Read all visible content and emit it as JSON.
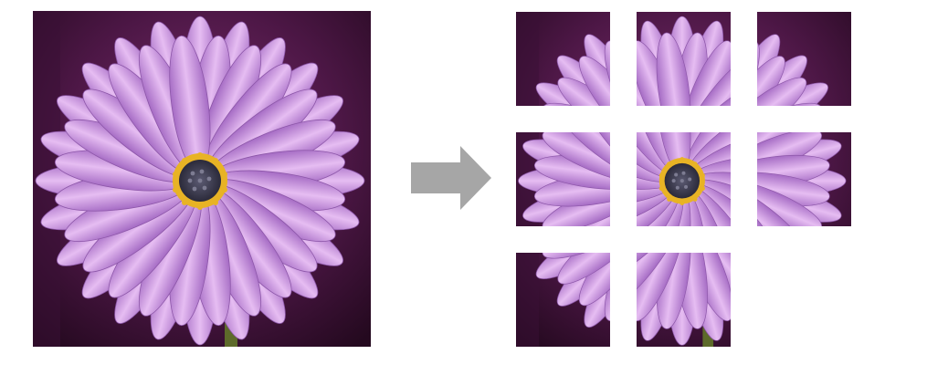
{
  "figure": {
    "source_image": "daisy-icon",
    "arrow": "right-arrow-icon",
    "grid": {
      "rows": 3,
      "cols": 3
    },
    "tiles": [
      {
        "row": 0,
        "col": 0,
        "present": true
      },
      {
        "row": 0,
        "col": 1,
        "present": true
      },
      {
        "row": 0,
        "col": 2,
        "present": true
      },
      {
        "row": 1,
        "col": 0,
        "present": true
      },
      {
        "row": 1,
        "col": 1,
        "present": true
      },
      {
        "row": 1,
        "col": 2,
        "present": true
      },
      {
        "row": 2,
        "col": 0,
        "present": true
      },
      {
        "row": 2,
        "col": 1,
        "present": true
      },
      {
        "row": 2,
        "col": 2,
        "present": false
      }
    ]
  },
  "colors": {
    "background_dark": "#2a0c2c",
    "background_mid": "#5e1f55",
    "petal_light": "#e0b2ee",
    "petal_dark": "#a86fc8",
    "center": "#3b3a4e",
    "pollen": "#e8b325",
    "arrow": "#a6a6a6"
  }
}
